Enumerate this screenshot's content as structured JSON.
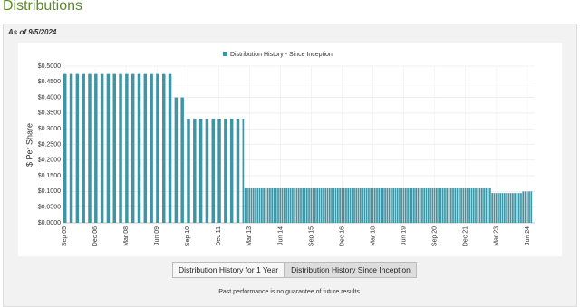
{
  "page": {
    "heading": "Distributions",
    "as_of": "As of 9/5/2024",
    "buttons": [
      "Distribution History for 1 Year",
      "Distribution History Since Inception"
    ],
    "footnote": "Past performance is no guarantee of future results."
  },
  "chart_data": {
    "type": "bar",
    "legend": "Distribution History - Since Inception",
    "ylabel": "$ Per Share",
    "color": "#3f95a4",
    "grid": true,
    "x": [
      "Sep 05",
      "Dec 05",
      "Mar 06",
      "Jun 06",
      "Sep 06",
      "Dec 06",
      "Mar 07",
      "Jun 07",
      "Sep 07",
      "Dec 07",
      "Mar 08",
      "Jun 08",
      "Sep 08",
      "Dec 08",
      "Mar 09",
      "Jun 09",
      "Sep 09",
      "Dec 09",
      "Mar 10",
      "Jun 10",
      "Sep 10",
      "Dec 10",
      "Mar 11",
      "Jun 11",
      "Sep 11",
      "Dec 11",
      "Mar 12",
      "Jun 12",
      "Sep 12",
      "Dec 12",
      "Jan 13",
      "Feb 13",
      "Mar 13",
      "Apr 13",
      "May 13",
      "Jun 13",
      "Jul 13",
      "Aug 13",
      "Sep 13",
      "Oct 13",
      "Nov 13",
      "Dec 13",
      "Jan 14",
      "Feb 14",
      "Mar 14",
      "Apr 14",
      "May 14",
      "Jun 14",
      "Jul 14",
      "Aug 14",
      "Sep 14",
      "Oct 14",
      "Nov 14",
      "Dec 14",
      "Jan 15",
      "Feb 15",
      "Mar 15",
      "Apr 15",
      "May 15",
      "Jun 15",
      "Jul 15",
      "Aug 15",
      "Sep 15",
      "Oct 15",
      "Nov 15",
      "Dec 15",
      "Jan 16",
      "Feb 16",
      "Mar 16",
      "Apr 16",
      "May 16",
      "Jun 16",
      "Jul 16",
      "Aug 16",
      "Sep 16",
      "Oct 16",
      "Nov 16",
      "Dec 16",
      "Jan 17",
      "Feb 17",
      "Mar 17",
      "Apr 17",
      "May 17",
      "Jun 17",
      "Jul 17",
      "Aug 17",
      "Sep 17",
      "Oct 17",
      "Nov 17",
      "Dec 17",
      "Jan 18",
      "Feb 18",
      "Mar 18",
      "Apr 18",
      "May 18",
      "Jun 18",
      "Jul 18",
      "Aug 18",
      "Sep 18",
      "Oct 18",
      "Nov 18",
      "Dec 18",
      "Jan 19",
      "Feb 19",
      "Mar 19",
      "Apr 19",
      "May 19",
      "Jun 19",
      "Jul 19",
      "Aug 19",
      "Sep 19",
      "Oct 19",
      "Nov 19",
      "Dec 19",
      "Jan 20",
      "Feb 20",
      "Mar 20",
      "Apr 20",
      "May 20",
      "Jun 20",
      "Jul 20",
      "Aug 20",
      "Sep 20",
      "Oct 20",
      "Nov 20",
      "Dec 20",
      "Jan 21",
      "Feb 21",
      "Mar 21",
      "Apr 21",
      "May 21",
      "Jun 21",
      "Jul 21",
      "Aug 21",
      "Sep 21",
      "Oct 21",
      "Nov 21",
      "Dec 21",
      "Jan 22",
      "Feb 22",
      "Mar 22",
      "Apr 22",
      "May 22",
      "Jun 22",
      "Jul 22",
      "Aug 22",
      "Sep 22",
      "Oct 22",
      "Nov 22",
      "Dec 22",
      "Jan 23",
      "Feb 23",
      "Mar 23",
      "Apr 23",
      "May 23",
      "Jun 23",
      "Jul 23",
      "Aug 23",
      "Sep 23",
      "Oct 23",
      "Nov 23",
      "Dec 23",
      "Jan 24",
      "Feb 24",
      "Mar 24",
      "Apr 24",
      "May 24",
      "Jun 24",
      "Jul 24",
      "Aug 24"
    ],
    "values": [
      0.475,
      0.475,
      0.475,
      0.475,
      0.475,
      0.475,
      0.475,
      0.475,
      0.475,
      0.475,
      0.475,
      0.475,
      0.475,
      0.475,
      0.475,
      0.475,
      0.475,
      0.475,
      0.4,
      0.4,
      0.3325,
      0.3325,
      0.3325,
      0.3325,
      0.3325,
      0.3325,
      0.3325,
      0.3325,
      0.3325,
      0.3325,
      0.11,
      0.11,
      0.11,
      0.11,
      0.11,
      0.11,
      0.11,
      0.11,
      0.11,
      0.11,
      0.11,
      0.11,
      0.11,
      0.11,
      0.11,
      0.11,
      0.11,
      0.11,
      0.11,
      0.11,
      0.11,
      0.11,
      0.11,
      0.11,
      0.11,
      0.11,
      0.11,
      0.11,
      0.11,
      0.11,
      0.11,
      0.11,
      0.11,
      0.11,
      0.11,
      0.11,
      0.11,
      0.11,
      0.11,
      0.11,
      0.11,
      0.11,
      0.11,
      0.11,
      0.11,
      0.11,
      0.11,
      0.11,
      0.11,
      0.11,
      0.11,
      0.11,
      0.11,
      0.11,
      0.11,
      0.11,
      0.11,
      0.11,
      0.11,
      0.11,
      0.11,
      0.11,
      0.11,
      0.11,
      0.11,
      0.11,
      0.11,
      0.11,
      0.11,
      0.11,
      0.11,
      0.11,
      0.11,
      0.11,
      0.11,
      0.11,
      0.11,
      0.11,
      0.11,
      0.11,
      0.11,
      0.11,
      0.11,
      0.11,
      0.11,
      0.11,
      0.11,
      0.11,
      0.11,
      0.11,
      0.11,
      0.11,
      0.11,
      0.11,
      0.11,
      0.11,
      0.11,
      0.11,
      0.11,
      0.11,
      0.11,
      0.11,
      0.11,
      0.11,
      0.11,
      0.11,
      0.11,
      0.11,
      0.11,
      0.11,
      0.11,
      0.11,
      0.11,
      0.11,
      0.11,
      0.11,
      0.11,
      0.11,
      0.11,
      0.11,
      0.095,
      0.095,
      0.095,
      0.095,
      0.095,
      0.095,
      0.095,
      0.095,
      0.095,
      0.095,
      0.095,
      0.095,
      0.095,
      0.095,
      0.095,
      0.1,
      0.1,
      0.1,
      0.1,
      0.1
    ],
    "xticks": [
      "Sep 05",
      "Dec 06",
      "Mar 08",
      "Jun 09",
      "Sep 10",
      "Dec 11",
      "Mar 13",
      "Jun 14",
      "Sep 15",
      "Dec 16",
      "Mar 18",
      "Jun 19",
      "Sep 20",
      "Dec 21",
      "Mar 23",
      "Jun 24"
    ],
    "ylim": [
      0,
      0.5
    ],
    "yticks": [
      {
        "value": 0,
        "label": "$0.0000"
      },
      {
        "value": 0.05,
        "label": "$0.0500"
      },
      {
        "value": 0.1,
        "label": "$0.1000"
      },
      {
        "value": 0.15,
        "label": "$0.1500"
      },
      {
        "value": 0.2,
        "label": "$0.2000"
      },
      {
        "value": 0.25,
        "label": "$0.2500"
      },
      {
        "value": 0.3,
        "label": "$0.3000"
      },
      {
        "value": 0.35,
        "label": "$0.3500"
      },
      {
        "value": 0.4,
        "label": "$0.4000"
      },
      {
        "value": 0.45,
        "label": "$0.4500"
      },
      {
        "value": 0.5,
        "label": "$0.5000"
      }
    ]
  }
}
